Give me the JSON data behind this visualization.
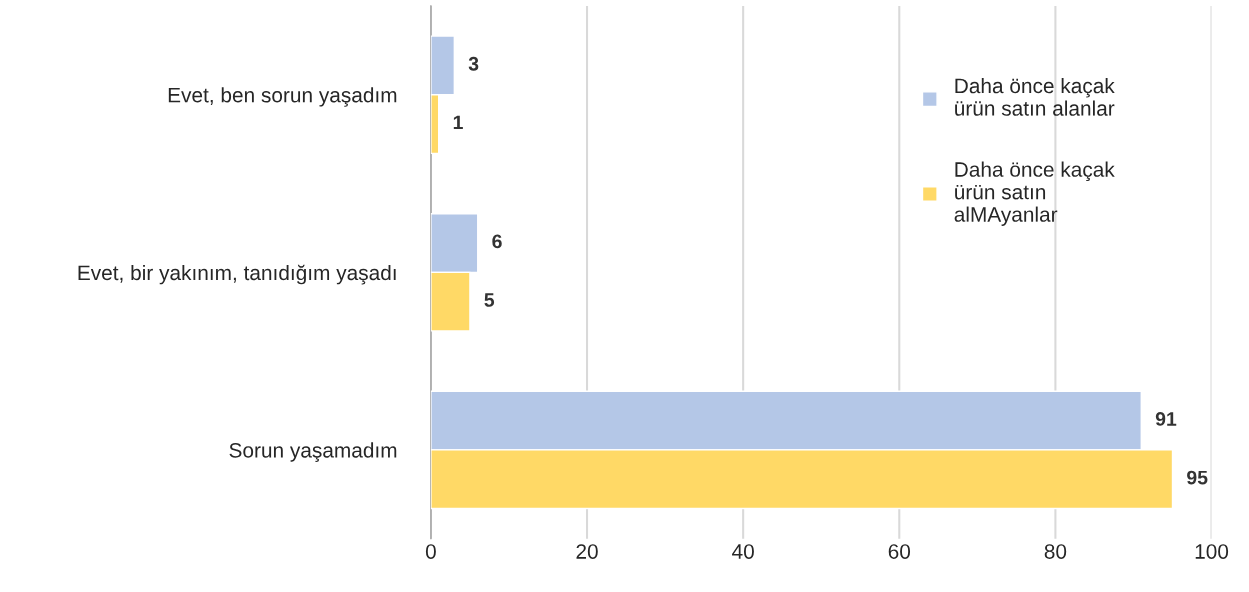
{
  "chart_data": {
    "type": "bar",
    "orientation": "horizontal",
    "categories": [
      "Evet, ben sorun yaşadım",
      "Evet, bir yakınım, tanıdığım yaşadı",
      "Sorun yaşamadım"
    ],
    "series": [
      {
        "name": "Daha önce kaçak\nürün satın alanlar",
        "color": "#b4c7e7",
        "values": [
          3,
          6,
          91
        ]
      },
      {
        "name": "Daha önce kaçak\nürün satın\nalMAyanlar",
        "color": "#ffd966",
        "values": [
          1,
          5,
          95
        ]
      }
    ],
    "xlim": [
      0,
      100
    ],
    "xticks": [
      0,
      20,
      40,
      60,
      80,
      100
    ],
    "grid": "x",
    "legend": "top right",
    "data_labels": true
  }
}
